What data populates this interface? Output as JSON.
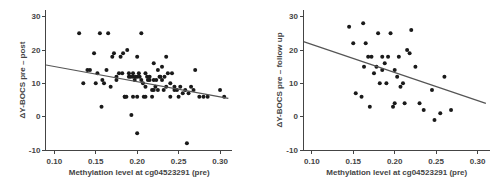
{
  "chart_data": [
    {
      "type": "scatter",
      "xlabel": "Methylation level at cg04523291 (pre)",
      "ylabel": "ΔY-BOCS pre – post",
      "xlim": [
        0.09,
        0.315
      ],
      "ylim": [
        -10,
        32
      ],
      "xticks": [
        {
          "value": 0.1,
          "label": "0.10"
        },
        0.15,
        {
          "value": 0.2,
          "label": "0.20"
        },
        0.25,
        {
          "value": 0.3,
          "label": "0.30"
        }
      ],
      "yticks": [
        -10,
        0,
        10,
        20,
        30
      ],
      "grid": false,
      "series": [
        {
          "type": "scatter",
          "color": "#1a1a1a",
          "marker": "circle",
          "x": [
            0.13,
            0.135,
            0.14,
            0.143,
            0.148,
            0.15,
            0.152,
            0.155,
            0.157,
            0.158,
            0.16,
            0.163,
            0.165,
            0.168,
            0.17,
            0.172,
            0.175,
            0.175,
            0.178,
            0.18,
            0.182,
            0.183,
            0.185,
            0.185,
            0.187,
            0.188,
            0.19,
            0.19,
            0.192,
            0.193,
            0.195,
            0.195,
            0.195,
            0.197,
            0.198,
            0.2,
            0.2,
            0.2,
            0.2,
            0.202,
            0.203,
            0.205,
            0.205,
            0.207,
            0.208,
            0.21,
            0.21,
            0.21,
            0.212,
            0.213,
            0.215,
            0.215,
            0.218,
            0.218,
            0.22,
            0.22,
            0.22,
            0.222,
            0.223,
            0.225,
            0.225,
            0.227,
            0.228,
            0.23,
            0.23,
            0.232,
            0.233,
            0.235,
            0.235,
            0.237,
            0.24,
            0.24,
            0.242,
            0.245,
            0.245,
            0.248,
            0.25,
            0.252,
            0.255,
            0.258,
            0.26,
            0.262,
            0.265,
            0.268,
            0.27,
            0.275,
            0.28,
            0.285,
            0.3,
            0.305
          ],
          "values": [
            25.0,
            10.0,
            14.0,
            14.0,
            19.0,
            10.0,
            13.0,
            25.0,
            3.0,
            11.0,
            10.0,
            14.0,
            25.0,
            9.0,
            18.0,
            19.0,
            12.0,
            11.0,
            13.0,
            18.0,
            13.0,
            19.0,
            6.0,
            6.0,
            6.0,
            20.0,
            12.0,
            13.0,
            12.0,
            0.5,
            12.0,
            6.0,
            13.0,
            11.0,
            12.0,
            -5.0,
            6.0,
            12.0,
            18.0,
            13.0,
            12.0,
            11.0,
            25.0,
            10.0,
            6.0,
            9.0,
            6.0,
            13.0,
            12.0,
            11.0,
            11.0,
            12.0,
            6.0,
            8.0,
            16.0,
            11.0,
            8.0,
            9.0,
            11.0,
            14.0,
            8.0,
            12.0,
            12.0,
            15.0,
            11.0,
            8.0,
            12.0,
            9.0,
            18.0,
            13.0,
            6.0,
            10.0,
            13.0,
            9.0,
            8.0,
            8.0,
            6.0,
            9.0,
            7.0,
            8.0,
            -8.0,
            7.0,
            9.0,
            8.0,
            14.0,
            6.0,
            6.0,
            6.0,
            8.0,
            6.0
          ]
        },
        {
          "type": "line",
          "color": "#555555",
          "line_style": "solid",
          "x": [
            0.09,
            0.31
          ],
          "values": [
            15.5,
            5.5
          ]
        }
      ]
    },
    {
      "type": "scatter",
      "xlabel": "Methylation level at cg04523291 (pre)",
      "ylabel": "ΔY-BOCS pre – follow up",
      "xlim": [
        0.09,
        0.315
      ],
      "ylim": [
        -10,
        32
      ],
      "xticks": [
        {
          "value": 0.1,
          "label": "0.10"
        },
        0.15,
        {
          "value": 0.2,
          "label": "0.20"
        },
        0.25,
        {
          "value": 0.3,
          "label": "0.30"
        }
      ],
      "yticks": [
        -10,
        0,
        10,
        20,
        30
      ],
      "grid": false,
      "series": [
        {
          "type": "scatter",
          "color": "#1a1a1a",
          "marker": "circle",
          "x": [
            0.145,
            0.15,
            0.153,
            0.16,
            0.162,
            0.163,
            0.165,
            0.168,
            0.17,
            0.172,
            0.175,
            0.178,
            0.18,
            0.182,
            0.185,
            0.185,
            0.188,
            0.19,
            0.192,
            0.195,
            0.198,
            0.2,
            0.2,
            0.203,
            0.205,
            0.207,
            0.21,
            0.212,
            0.215,
            0.218,
            0.22,
            0.225,
            0.23,
            0.235,
            0.245,
            0.248,
            0.255,
            0.26,
            0.268
          ],
          "values": [
            27.0,
            22.0,
            7.0,
            6.0,
            28.0,
            15.0,
            22.0,
            18.0,
            3.0,
            18.0,
            13.0,
            15.0,
            25.0,
            10.0,
            14.0,
            18.0,
            16.0,
            10.0,
            18.0,
            25.0,
            3.0,
            14.0,
            4.0,
            12.0,
            18.0,
            9.0,
            10.0,
            4.0,
            20.0,
            19.0,
            26.0,
            15.0,
            4.0,
            2.0,
            8.0,
            -1.0,
            1.0,
            12.0,
            2.0
          ]
        },
        {
          "type": "line",
          "color": "#555555",
          "line_style": "solid",
          "x": [
            0.09,
            0.31
          ],
          "values": [
            22.5,
            4.0
          ]
        }
      ]
    }
  ]
}
